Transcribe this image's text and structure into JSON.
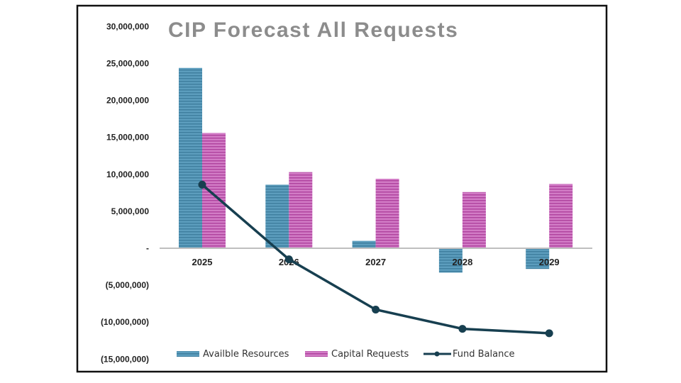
{
  "chart_data": {
    "type": "bar",
    "title": "CIP Forecast All Requests",
    "categories": [
      "2025",
      "2026",
      "2027",
      "2028",
      "2029"
    ],
    "ylim": [
      -15000000,
      30000000
    ],
    "yticks": [
      30000000,
      25000000,
      20000000,
      15000000,
      10000000,
      5000000,
      0,
      -5000000,
      -10000000,
      -15000000
    ],
    "ytick_labels": [
      "30,000,000",
      "25,000,000",
      "20,000,000",
      "15,000,000",
      "10,000,000",
      "5,000,000",
      "-",
      "(5,000,000)",
      "(10,000,000)",
      "(15,000,000)"
    ],
    "grid": false,
    "legend_position": "bottom",
    "series": [
      {
        "name": "Availble Resources",
        "kind": "bar",
        "color": "#4a8fb0",
        "values": [
          24400000,
          8600000,
          1000000,
          -3300000,
          -2800000
        ]
      },
      {
        "name": "Capital Requests",
        "kind": "bar",
        "color": "#c050b0",
        "values": [
          15600000,
          10300000,
          9400000,
          7600000,
          8700000
        ]
      },
      {
        "name": "Fund Balance",
        "kind": "line",
        "color": "#173f50",
        "values": [
          8600000,
          -1500000,
          -8300000,
          -10900000,
          -11500000
        ]
      }
    ]
  }
}
